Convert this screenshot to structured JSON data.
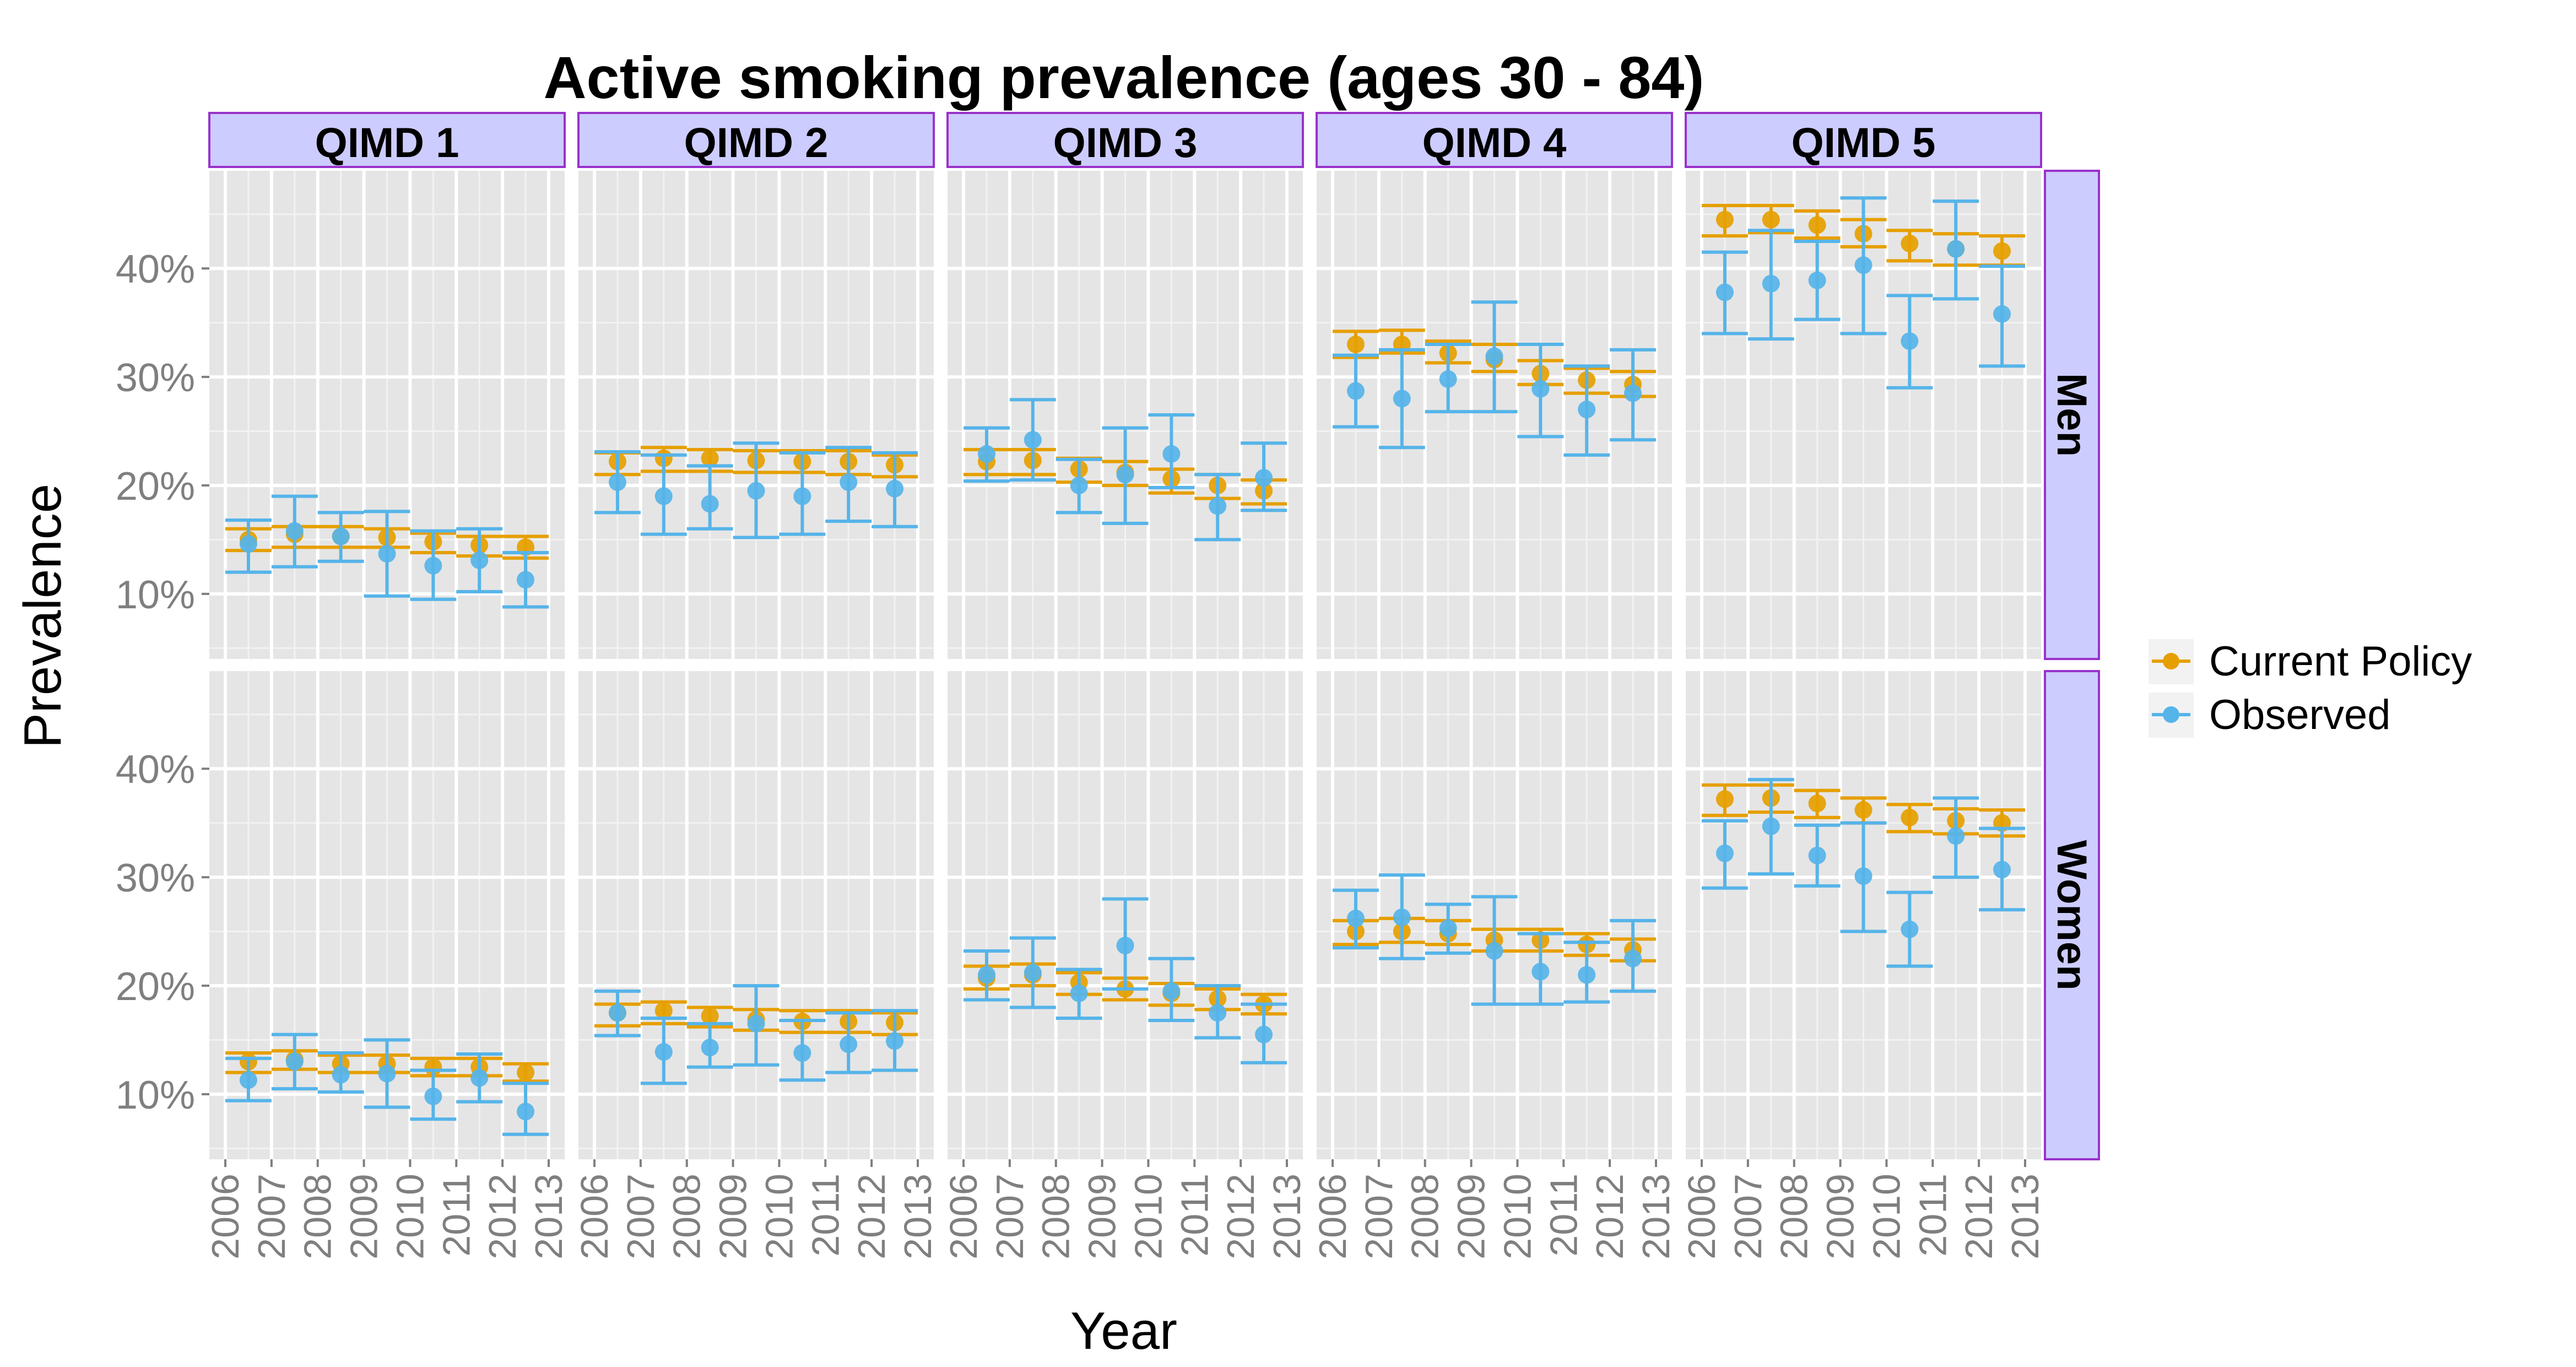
{
  "chart_data": {
    "type": "scatter",
    "title": "Active smoking prevalence (ages 30 - 84)",
    "xlabel": "Year",
    "ylabel": "Prevalence",
    "x": [
      "2006",
      "2007",
      "2008",
      "2009",
      "2010",
      "2011",
      "2012",
      "2013"
    ],
    "ylim": [
      0.04,
      0.49
    ],
    "yticks": [
      0.1,
      0.2,
      0.3,
      0.4
    ],
    "ytick_labels": [
      "10%",
      "20%",
      "30%",
      "40%"
    ],
    "grid": true,
    "legend_position": "right",
    "columns": [
      "QIMD 1",
      "QIMD 2",
      "QIMD 3",
      "QIMD 4",
      "QIMD 5"
    ],
    "rows": [
      "Men",
      "Women"
    ],
    "colors": {
      "Current Policy": "#E69F00",
      "Observed": "#56B4E9",
      "strip_fill": "#CCCCFF",
      "strip_border": "#9932CC",
      "panel_bg": "#E5E5E5"
    },
    "series": [
      {
        "name": "Current Policy",
        "panels": [
          {
            "column": "QIMD 1",
            "row": "Men",
            "x": [
              2006.5,
              2007.5,
              2008.5,
              2009.5,
              2010.5,
              2011.5,
              2012.5
            ],
            "y": [
              0.15,
              0.155,
              0.153,
              0.152,
              0.148,
              0.145,
              0.143
            ],
            "ymin": [
              0.14,
              0.143,
              0.143,
              0.143,
              0.138,
              0.135,
              0.133
            ],
            "ymax": [
              0.16,
              0.162,
              0.162,
              0.16,
              0.156,
              0.153,
              0.153
            ]
          },
          {
            "column": "QIMD 2",
            "row": "Men",
            "x": [
              2006.5,
              2007.5,
              2008.5,
              2009.5,
              2010.5,
              2011.5,
              2012.5
            ],
            "y": [
              0.222,
              0.225,
              0.225,
              0.223,
              0.222,
              0.222,
              0.219
            ],
            "ymin": [
              0.21,
              0.213,
              0.213,
              0.212,
              0.212,
              0.21,
              0.208
            ],
            "ymax": [
              0.23,
              0.235,
              0.233,
              0.232,
              0.232,
              0.232,
              0.228
            ]
          },
          {
            "column": "QIMD 3",
            "row": "Men",
            "x": [
              2006.5,
              2007.5,
              2008.5,
              2009.5,
              2010.5,
              2011.5,
              2012.5
            ],
            "y": [
              0.222,
              0.223,
              0.215,
              0.212,
              0.206,
              0.2,
              0.195
            ],
            "ymin": [
              0.21,
              0.21,
              0.203,
              0.2,
              0.193,
              0.188,
              0.183
            ],
            "ymax": [
              0.233,
              0.233,
              0.225,
              0.222,
              0.215,
              0.21,
              0.205
            ]
          },
          {
            "column": "QIMD 4",
            "row": "Men",
            "x": [
              2006.5,
              2007.5,
              2008.5,
              2009.5,
              2010.5,
              2011.5,
              2012.5
            ],
            "y": [
              0.33,
              0.33,
              0.322,
              0.316,
              0.303,
              0.297,
              0.293
            ],
            "ymin": [
              0.318,
              0.322,
              0.313,
              0.305,
              0.293,
              0.285,
              0.282
            ],
            "ymax": [
              0.342,
              0.343,
              0.333,
              0.33,
              0.315,
              0.308,
              0.305
            ]
          },
          {
            "column": "QIMD 5",
            "row": "Men",
            "x": [
              2006.5,
              2007.5,
              2008.5,
              2009.5,
              2010.5,
              2011.5,
              2012.5
            ],
            "y": [
              0.445,
              0.445,
              0.44,
              0.432,
              0.423,
              0.418,
              0.416
            ],
            "ymin": [
              0.43,
              0.433,
              0.428,
              0.42,
              0.407,
              0.403,
              0.403
            ],
            "ymax": [
              0.458,
              0.458,
              0.453,
              0.445,
              0.435,
              0.432,
              0.43
            ]
          },
          {
            "column": "QIMD 1",
            "row": "Women",
            "x": [
              2006.5,
              2007.5,
              2008.5,
              2009.5,
              2010.5,
              2011.5,
              2012.5
            ],
            "y": [
              0.13,
              0.132,
              0.128,
              0.128,
              0.125,
              0.125,
              0.12
            ],
            "ymin": [
              0.12,
              0.123,
              0.12,
              0.12,
              0.117,
              0.117,
              0.112
            ],
            "ymax": [
              0.138,
              0.14,
              0.136,
              0.136,
              0.133,
              0.133,
              0.128
            ]
          },
          {
            "column": "QIMD 2",
            "row": "Women",
            "x": [
              2006.5,
              2007.5,
              2008.5,
              2009.5,
              2010.5,
              2011.5,
              2012.5
            ],
            "y": [
              0.175,
              0.177,
              0.172,
              0.169,
              0.167,
              0.167,
              0.166
            ],
            "ymin": [
              0.163,
              0.165,
              0.162,
              0.159,
              0.157,
              0.157,
              0.155
            ],
            "ymax": [
              0.183,
              0.185,
              0.18,
              0.178,
              0.177,
              0.177,
              0.175
            ]
          },
          {
            "column": "QIMD 3",
            "row": "Women",
            "x": [
              2006.5,
              2007.5,
              2008.5,
              2009.5,
              2010.5,
              2011.5,
              2012.5
            ],
            "y": [
              0.207,
              0.21,
              0.203,
              0.197,
              0.193,
              0.188,
              0.183
            ],
            "ymin": [
              0.197,
              0.2,
              0.192,
              0.187,
              0.182,
              0.178,
              0.174
            ],
            "ymax": [
              0.218,
              0.22,
              0.212,
              0.207,
              0.202,
              0.197,
              0.192
            ]
          },
          {
            "column": "QIMD 4",
            "row": "Women",
            "x": [
              2006.5,
              2007.5,
              2008.5,
              2009.5,
              2010.5,
              2011.5,
              2012.5
            ],
            "y": [
              0.25,
              0.25,
              0.248,
              0.242,
              0.242,
              0.238,
              0.233
            ],
            "ymin": [
              0.238,
              0.24,
              0.238,
              0.232,
              0.232,
              0.228,
              0.223
            ],
            "ymax": [
              0.26,
              0.262,
              0.26,
              0.252,
              0.252,
              0.248,
              0.243
            ]
          },
          {
            "column": "QIMD 5",
            "row": "Women",
            "x": [
              2006.5,
              2007.5,
              2008.5,
              2009.5,
              2010.5,
              2011.5,
              2012.5
            ],
            "y": [
              0.372,
              0.373,
              0.368,
              0.362,
              0.355,
              0.352,
              0.35
            ],
            "ymin": [
              0.357,
              0.36,
              0.355,
              0.35,
              0.342,
              0.34,
              0.338
            ],
            "ymax": [
              0.385,
              0.385,
              0.38,
              0.373,
              0.367,
              0.363,
              0.362
            ]
          }
        ]
      },
      {
        "name": "Observed",
        "panels": [
          {
            "column": "QIMD 1",
            "row": "Men",
            "x": [
              2006.5,
              2007.5,
              2008.5,
              2009.5,
              2010.5,
              2011.5,
              2012.5
            ],
            "y": [
              0.146,
              0.158,
              0.153,
              0.137,
              0.126,
              0.131,
              0.113
            ],
            "ymin": [
              0.12,
              0.125,
              0.13,
              0.098,
              0.095,
              0.102,
              0.088
            ],
            "ymax": [
              0.168,
              0.19,
              0.175,
              0.176,
              0.158,
              0.16,
              0.138
            ]
          },
          {
            "column": "QIMD 2",
            "row": "Men",
            "x": [
              2006.5,
              2007.5,
              2008.5,
              2009.5,
              2010.5,
              2011.5,
              2012.5
            ],
            "y": [
              0.203,
              0.19,
              0.183,
              0.195,
              0.19,
              0.203,
              0.197
            ],
            "ymin": [
              0.175,
              0.155,
              0.16,
              0.152,
              0.155,
              0.167,
              0.162
            ],
            "ymax": [
              0.231,
              0.228,
              0.218,
              0.239,
              0.23,
              0.235,
              0.23
            ]
          },
          {
            "column": "QIMD 3",
            "row": "Men",
            "x": [
              2006.5,
              2007.5,
              2008.5,
              2009.5,
              2010.5,
              2011.5,
              2012.5
            ],
            "y": [
              0.229,
              0.242,
              0.2,
              0.21,
              0.229,
              0.181,
              0.207
            ],
            "ymin": [
              0.204,
              0.205,
              0.175,
              0.165,
              0.198,
              0.15,
              0.177
            ],
            "ymax": [
              0.253,
              0.279,
              0.224,
              0.253,
              0.265,
              0.21,
              0.239
            ]
          },
          {
            "column": "QIMD 4",
            "row": "Men",
            "x": [
              2006.5,
              2007.5,
              2008.5,
              2009.5,
              2010.5,
              2011.5,
              2012.5
            ],
            "y": [
              0.287,
              0.28,
              0.298,
              0.319,
              0.289,
              0.27,
              0.285
            ],
            "ymin": [
              0.254,
              0.235,
              0.268,
              0.268,
              0.245,
              0.228,
              0.242
            ],
            "ymax": [
              0.32,
              0.325,
              0.33,
              0.369,
              0.33,
              0.31,
              0.325
            ]
          },
          {
            "column": "QIMD 5",
            "row": "Men",
            "x": [
              2006.5,
              2007.5,
              2008.5,
              2009.5,
              2010.5,
              2011.5,
              2012.5
            ],
            "y": [
              0.378,
              0.386,
              0.389,
              0.403,
              0.333,
              0.418,
              0.358
            ],
            "ymin": [
              0.34,
              0.335,
              0.353,
              0.34,
              0.29,
              0.372,
              0.31
            ],
            "ymax": [
              0.415,
              0.435,
              0.425,
              0.465,
              0.375,
              0.462,
              0.402
            ]
          },
          {
            "column": "QIMD 1",
            "row": "Women",
            "x": [
              2006.5,
              2007.5,
              2008.5,
              2009.5,
              2010.5,
              2011.5,
              2012.5
            ],
            "y": [
              0.113,
              0.13,
              0.118,
              0.119,
              0.098,
              0.115,
              0.084
            ],
            "ymin": [
              0.094,
              0.105,
              0.102,
              0.088,
              0.077,
              0.093,
              0.063
            ],
            "ymax": [
              0.133,
              0.155,
              0.138,
              0.15,
              0.122,
              0.137,
              0.11
            ]
          },
          {
            "column": "QIMD 2",
            "row": "Women",
            "x": [
              2006.5,
              2007.5,
              2008.5,
              2009.5,
              2010.5,
              2011.5,
              2012.5
            ],
            "y": [
              0.175,
              0.139,
              0.143,
              0.165,
              0.138,
              0.146,
              0.149
            ],
            "ymin": [
              0.154,
              0.11,
              0.125,
              0.127,
              0.113,
              0.12,
              0.122
            ],
            "ymax": [
              0.195,
              0.17,
              0.165,
              0.2,
              0.168,
              0.175,
              0.177
            ]
          },
          {
            "column": "QIMD 3",
            "row": "Women",
            "x": [
              2006.5,
              2007.5,
              2008.5,
              2009.5,
              2010.5,
              2011.5,
              2012.5
            ],
            "y": [
              0.21,
              0.212,
              0.193,
              0.237,
              0.195,
              0.175,
              0.155
            ],
            "ymin": [
              0.187,
              0.18,
              0.17,
              0.197,
              0.168,
              0.152,
              0.129
            ],
            "ymax": [
              0.232,
              0.244,
              0.215,
              0.28,
              0.225,
              0.2,
              0.183
            ]
          },
          {
            "column": "QIMD 4",
            "row": "Women",
            "x": [
              2006.5,
              2007.5,
              2008.5,
              2009.5,
              2010.5,
              2011.5,
              2012.5
            ],
            "y": [
              0.262,
              0.263,
              0.253,
              0.232,
              0.213,
              0.21,
              0.225
            ],
            "ymin": [
              0.235,
              0.225,
              0.23,
              0.183,
              0.183,
              0.185,
              0.195
            ],
            "ymax": [
              0.288,
              0.302,
              0.275,
              0.282,
              0.248,
              0.24,
              0.26
            ]
          },
          {
            "column": "QIMD 5",
            "row": "Women",
            "x": [
              2006.5,
              2007.5,
              2008.5,
              2009.5,
              2010.5,
              2011.5,
              2012.5
            ],
            "y": [
              0.322,
              0.347,
              0.32,
              0.301,
              0.252,
              0.338,
              0.307
            ],
            "ymin": [
              0.29,
              0.303,
              0.292,
              0.25,
              0.218,
              0.3,
              0.27
            ],
            "ymax": [
              0.352,
              0.39,
              0.348,
              0.35,
              0.286,
              0.373,
              0.345
            ]
          }
        ]
      }
    ]
  }
}
